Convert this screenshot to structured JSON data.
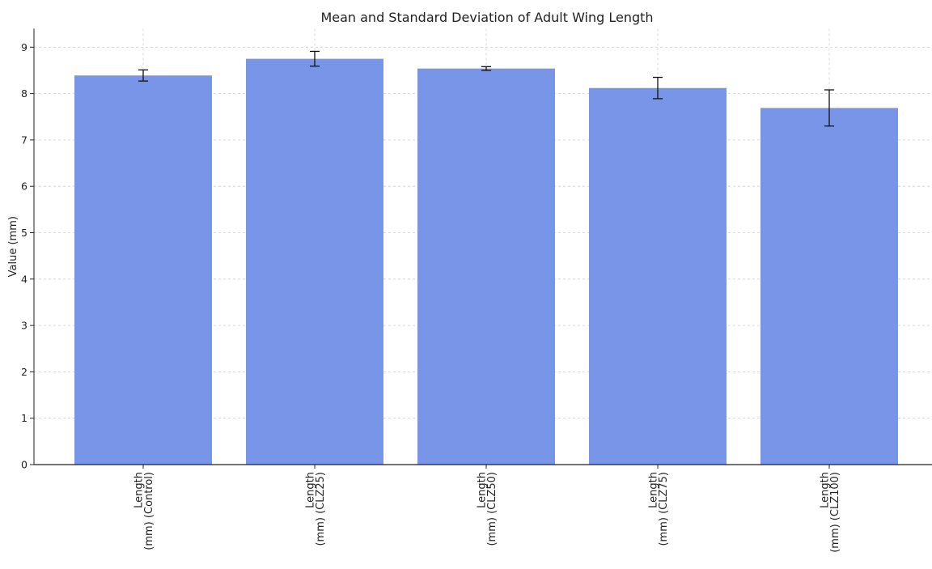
{
  "chart_data": {
    "type": "bar",
    "title": "Mean and Standard Deviation of Adult Wing Length",
    "xlabel": "",
    "ylabel": "Value (mm)",
    "ylim": [
      0,
      9.4
    ],
    "yticks": [
      0,
      1,
      2,
      3,
      4,
      5,
      6,
      7,
      8,
      9
    ],
    "grid": true,
    "categories": [
      [
        "Length",
        "(mm)  (Control)"
      ],
      [
        "Length",
        "(mm)  (CLZ25)"
      ],
      [
        "Length",
        "(mm)  (CLZ50)"
      ],
      [
        "Length",
        "(mm)  (CLZ75)"
      ],
      [
        "Length",
        "(mm)  (CLZ100)"
      ]
    ],
    "values": [
      8.39,
      8.75,
      8.54,
      8.12,
      7.69
    ],
    "errors": [
      0.12,
      0.16,
      0.04,
      0.23,
      0.39
    ],
    "colors": {
      "bar": "#7895e8",
      "error": "#111111",
      "grid": "#cfcfcf",
      "axis": "#222222"
    }
  }
}
